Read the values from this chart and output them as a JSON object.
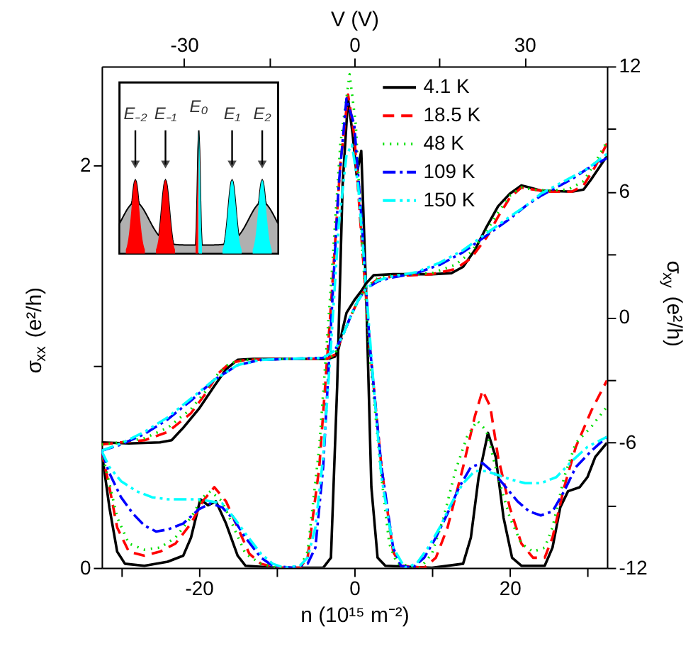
{
  "chart_data": {
    "type": "line",
    "xlabel": "n (10¹⁵ m⁻²)",
    "x2label": "V (V)",
    "ylabel": "σ$_{xx}$ (e²/h)",
    "y2label": "σ$_{xy}$ (e²/h)",
    "xlim": [
      -32.5,
      32.5
    ],
    "xticks": [
      {
        "value": -30,
        "label": null
      },
      -20,
      {
        "value": -10,
        "label": null
      },
      0,
      {
        "value": 10,
        "label": null
      },
      20,
      {
        "value": 30,
        "label": null
      }
    ],
    "x2lim": [
      -44.5,
      44.5
    ],
    "x2ticks": [
      -30,
      {
        "value": -15,
        "label": null
      },
      0,
      {
        "value": 15,
        "label": null
      },
      30
    ],
    "ylim": [
      0,
      2.49
    ],
    "yticks": [
      0,
      {
        "value": 1,
        "label": null
      },
      2
    ],
    "y2lim": [
      -12,
      12
    ],
    "y2ticks": [
      -12,
      {
        "value": -9,
        "label": null
      },
      -6,
      {
        "value": -3,
        "label": null
      },
      0,
      {
        "value": 3,
        "label": null
      },
      6,
      {
        "value": 9,
        "label": null
      },
      12
    ],
    "grid": false,
    "legend": "top right",
    "annotations": [
      "E₋₂",
      "E₋₁",
      "E₀",
      "E₁",
      "E₂"
    ],
    "series": [
      {
        "name": "4.1 K",
        "color": "#000000",
        "line_style": "solid",
        "x": [
          -32.5,
          -31.5,
          -30.5,
          -29.5,
          -27,
          -24,
          -22,
          -21,
          -19.8,
          -18.8,
          -17.8,
          -16.5,
          -15,
          -14,
          -10,
          -4,
          -3,
          -2.2,
          -1.5,
          -0.8,
          -0.2,
          0.3,
          0.9,
          1.5,
          2.2,
          3,
          4,
          10,
          14,
          15,
          16,
          17.2,
          18.2,
          19.2,
          20.3,
          21.5,
          24.5,
          25.5,
          26.5,
          27.5,
          29,
          30,
          31,
          32.5
        ],
        "values": [
          0.58,
          0.3,
          0.08,
          0.02,
          0.01,
          0.03,
          0.06,
          0.15,
          0.34,
          0.31,
          0.33,
          0.22,
          0.06,
          0.01,
          0,
          0,
          0.05,
          0.9,
          1.9,
          2.33,
          2.15,
          1.95,
          2.07,
          1.4,
          0.4,
          0.05,
          0.01,
          0,
          0.02,
          0.15,
          0.45,
          0.67,
          0.55,
          0.25,
          0.05,
          0.01,
          0.01,
          0.1,
          0.3,
          0.38,
          0.4,
          0.45,
          0.55,
          0.62
        ]
      },
      {
        "name": "18.5 K",
        "color": "#ff0000",
        "line_style": "dashed",
        "x": [
          -32.5,
          -31.5,
          -30.5,
          -29,
          -27,
          -25,
          -23,
          -21,
          -19.5,
          -18,
          -16.5,
          -15,
          -13.5,
          -12,
          -10,
          -7,
          -6,
          -4.5,
          -3,
          -1.8,
          -0.8,
          0,
          1,
          2,
          3.5,
          5,
          6,
          9,
          10.5,
          12,
          14,
          15.5,
          16.5,
          17.5,
          18.5,
          20,
          21.5,
          23,
          24.5,
          25.5,
          27,
          28.5,
          30.5,
          32.5
        ],
        "values": [
          0.58,
          0.4,
          0.2,
          0.08,
          0.06,
          0.08,
          0.12,
          0.22,
          0.33,
          0.4,
          0.33,
          0.2,
          0.07,
          0.02,
          0,
          0,
          0.05,
          0.5,
          1.3,
          2.0,
          2.35,
          2.15,
          1.6,
          1.1,
          0.5,
          0.08,
          0.01,
          0,
          0.05,
          0.2,
          0.5,
          0.75,
          0.88,
          0.8,
          0.55,
          0.3,
          0.12,
          0.05,
          0.05,
          0.15,
          0.4,
          0.6,
          0.78,
          0.93
        ]
      },
      {
        "name": "48 K",
        "color": "#00e000",
        "line_style": "dotted",
        "x": [
          -32.5,
          -31.5,
          -30.5,
          -29,
          -27,
          -25,
          -23,
          -21,
          -19.5,
          -18.5,
          -17,
          -15.5,
          -14,
          -12,
          -10,
          -7,
          -6,
          -4.5,
          -3,
          -1.8,
          -0.6,
          0.2,
          1,
          2,
          3.5,
          4.5,
          5.5,
          8.5,
          10,
          11.5,
          13,
          14.5,
          15.8,
          17,
          18.5,
          20,
          21.5,
          23,
          24.5,
          25.5,
          27,
          28.5,
          30.5,
          32.5
        ],
        "values": [
          0.58,
          0.42,
          0.25,
          0.12,
          0.09,
          0.1,
          0.15,
          0.25,
          0.35,
          0.38,
          0.33,
          0.2,
          0.07,
          0.02,
          0,
          0,
          0.08,
          0.6,
          1.4,
          2.1,
          2.45,
          2.2,
          1.6,
          1.05,
          0.45,
          0.12,
          0.02,
          0,
          0.07,
          0.25,
          0.48,
          0.65,
          0.73,
          0.68,
          0.45,
          0.25,
          0.12,
          0.08,
          0.1,
          0.2,
          0.45,
          0.62,
          0.7,
          0.8
        ]
      },
      {
        "name": "109 K",
        "color": "#0000ff",
        "line_style": "dashdot",
        "x": [
          -32.5,
          -31.5,
          -30,
          -28.5,
          -27,
          -25.5,
          -24,
          -22,
          -20,
          -18.5,
          -17,
          -15.5,
          -14,
          -12,
          -10.5,
          -8,
          -6,
          -5,
          -4,
          -3,
          -2,
          -1,
          0,
          1,
          2,
          3.5,
          5,
          6,
          7.5,
          9,
          10.5,
          12,
          13.5,
          15,
          16.5,
          18,
          19.5,
          21,
          22.5,
          24,
          25.5,
          27,
          28.5,
          30.5,
          32.5
        ],
        "values": [
          0.58,
          0.47,
          0.35,
          0.27,
          0.21,
          0.18,
          0.19,
          0.22,
          0.29,
          0.32,
          0.3,
          0.24,
          0.15,
          0.05,
          0.01,
          0,
          0.02,
          0.1,
          0.5,
          1.2,
          1.9,
          2.33,
          2.2,
          1.7,
          1.1,
          0.5,
          0.1,
          0.01,
          0,
          0.05,
          0.15,
          0.27,
          0.4,
          0.5,
          0.52,
          0.47,
          0.4,
          0.33,
          0.28,
          0.26,
          0.28,
          0.38,
          0.5,
          0.58,
          0.65
        ]
      },
      {
        "name": "150 K",
        "color": "#00ffff",
        "line_style": "dashdotdot",
        "x": [
          -32.5,
          -31.5,
          -30,
          -28,
          -26,
          -24,
          -22,
          -20,
          -18.5,
          -17,
          -15.5,
          -14,
          -12,
          -10.5,
          -9,
          -7,
          -6,
          -5,
          -4,
          -3,
          -2,
          -1,
          -0.3,
          0.5,
          1.5,
          2.5,
          3.5,
          5,
          6.5,
          8,
          9.5,
          11,
          12.5,
          14,
          15.5,
          17,
          18.5,
          20,
          22,
          24,
          26,
          28,
          30,
          32.5
        ],
        "values": [
          0.58,
          0.5,
          0.43,
          0.38,
          0.35,
          0.34,
          0.34,
          0.34,
          0.33,
          0.32,
          0.25,
          0.17,
          0.07,
          0.02,
          0,
          0.01,
          0.05,
          0.2,
          0.55,
          1.1,
          1.7,
          2.05,
          2.1,
          1.9,
          1.4,
          0.9,
          0.45,
          0.1,
          0,
          0.02,
          0.1,
          0.2,
          0.32,
          0.42,
          0.48,
          0.48,
          0.46,
          0.44,
          0.42,
          0.42,
          0.45,
          0.53,
          0.6,
          0.65
        ]
      },
      {
        "color": "#000000",
        "line_style": "solid",
        "axis": "y2",
        "x": [
          -32.5,
          -29,
          -25,
          -23.5,
          -22,
          -20,
          -18,
          -16.5,
          -15,
          -13,
          -8,
          -3.5,
          -2.5,
          -2,
          -1.5,
          -1,
          0,
          1,
          1.5,
          2.5,
          5,
          10,
          12.5,
          14,
          15.5,
          17,
          18.5,
          20,
          21.5,
          22.5,
          24,
          28,
          29.5,
          30.5,
          32.5
        ],
        "values": [
          -6,
          -6.05,
          -6,
          -5.9,
          -5.3,
          -4.4,
          -3.3,
          -2.5,
          -2.05,
          -2,
          -2,
          -2,
          -1.9,
          -1.5,
          -0.6,
          0.2,
          0.8,
          1.3,
          1.6,
          2.0,
          2.05,
          2.05,
          2.1,
          2.4,
          3.2,
          4.3,
          5.3,
          5.9,
          6.3,
          6.2,
          6.05,
          6,
          6.1,
          6.6,
          7.7
        ]
      },
      {
        "color": "#ff0000",
        "line_style": "dashed",
        "axis": "y2",
        "x": [
          -32.5,
          -30,
          -27,
          -24,
          -21,
          -19,
          -17.5,
          -16,
          -14,
          -8,
          -3.5,
          -2.5,
          -1.5,
          -0.5,
          0.5,
          1.5,
          3,
          5,
          10,
          13,
          15,
          17,
          18.5,
          20,
          21.5,
          23,
          25,
          28,
          29.5,
          31,
          32.5
        ],
        "values": [
          -6.1,
          -6,
          -5.9,
          -5.5,
          -4.6,
          -3.6,
          -2.7,
          -2.2,
          -2.05,
          -2,
          -2,
          -1.8,
          -0.9,
          0,
          0.8,
          1.4,
          1.8,
          1.95,
          2.05,
          2.3,
          2.8,
          3.8,
          4.8,
          5.7,
          6.2,
          6.1,
          6,
          6,
          6.3,
          7.2,
          8.3
        ]
      },
      {
        "color": "#00e000",
        "line_style": "dotted",
        "axis": "y2",
        "x": [
          -32.5,
          -30,
          -27,
          -24,
          -21,
          -19,
          -17.5,
          -16,
          -14,
          -8,
          -3.5,
          -2.5,
          -1.5,
          -0.5,
          0.5,
          1.5,
          3,
          5,
          10,
          13,
          15,
          17,
          18.5,
          20,
          21.5,
          23,
          25,
          27.5,
          29.5,
          31,
          32.5
        ],
        "values": [
          -6.1,
          -6,
          -5.8,
          -5.3,
          -4.4,
          -3.5,
          -2.7,
          -2.2,
          -2.05,
          -2,
          -2,
          -1.8,
          -0.9,
          0,
          0.8,
          1.4,
          1.85,
          2,
          2.1,
          2.5,
          3.1,
          4.1,
          5,
          5.8,
          6.2,
          6.1,
          6.05,
          6.1,
          6.5,
          7.4,
          8.4
        ]
      },
      {
        "color": "#0000ff",
        "line_style": "dashdot",
        "axis": "y2",
        "x": [
          -32.5,
          -30,
          -27,
          -24,
          -21,
          -18,
          -15,
          -12,
          -8,
          -4,
          -2.5,
          -1.5,
          -0.5,
          0.5,
          1.5,
          3,
          5,
          8,
          11,
          14,
          17,
          20,
          22,
          24,
          26,
          28,
          30,
          32.5
        ],
        "values": [
          -6.4,
          -6.1,
          -5.6,
          -4.9,
          -4.0,
          -3.0,
          -2.3,
          -2.05,
          -2,
          -1.95,
          -1.6,
          -0.9,
          0,
          0.8,
          1.35,
          1.7,
          1.9,
          2.1,
          2.5,
          3.1,
          3.9,
          4.7,
          5.3,
          5.8,
          6.2,
          6.6,
          7.1,
          7.6
        ]
      },
      {
        "color": "#00ffff",
        "line_style": "dashdotdot",
        "axis": "y2",
        "x": [
          -32.5,
          -30,
          -27,
          -24,
          -21,
          -18,
          -15,
          -12,
          -8,
          -4,
          -2.5,
          -1.5,
          -0.5,
          0.5,
          1.5,
          3,
          5,
          8,
          11,
          14,
          17,
          20,
          22,
          24,
          26,
          28,
          30,
          32.5
        ],
        "values": [
          -6.4,
          -6.05,
          -5.5,
          -4.8,
          -3.9,
          -3.0,
          -2.3,
          -2.05,
          -2,
          -1.95,
          -1.6,
          -0.9,
          0,
          0.8,
          1.35,
          1.75,
          1.95,
          2.15,
          2.6,
          3.2,
          4.0,
          4.8,
          5.3,
          5.9,
          6.3,
          6.7,
          7.1,
          7.8
        ]
      }
    ]
  }
}
